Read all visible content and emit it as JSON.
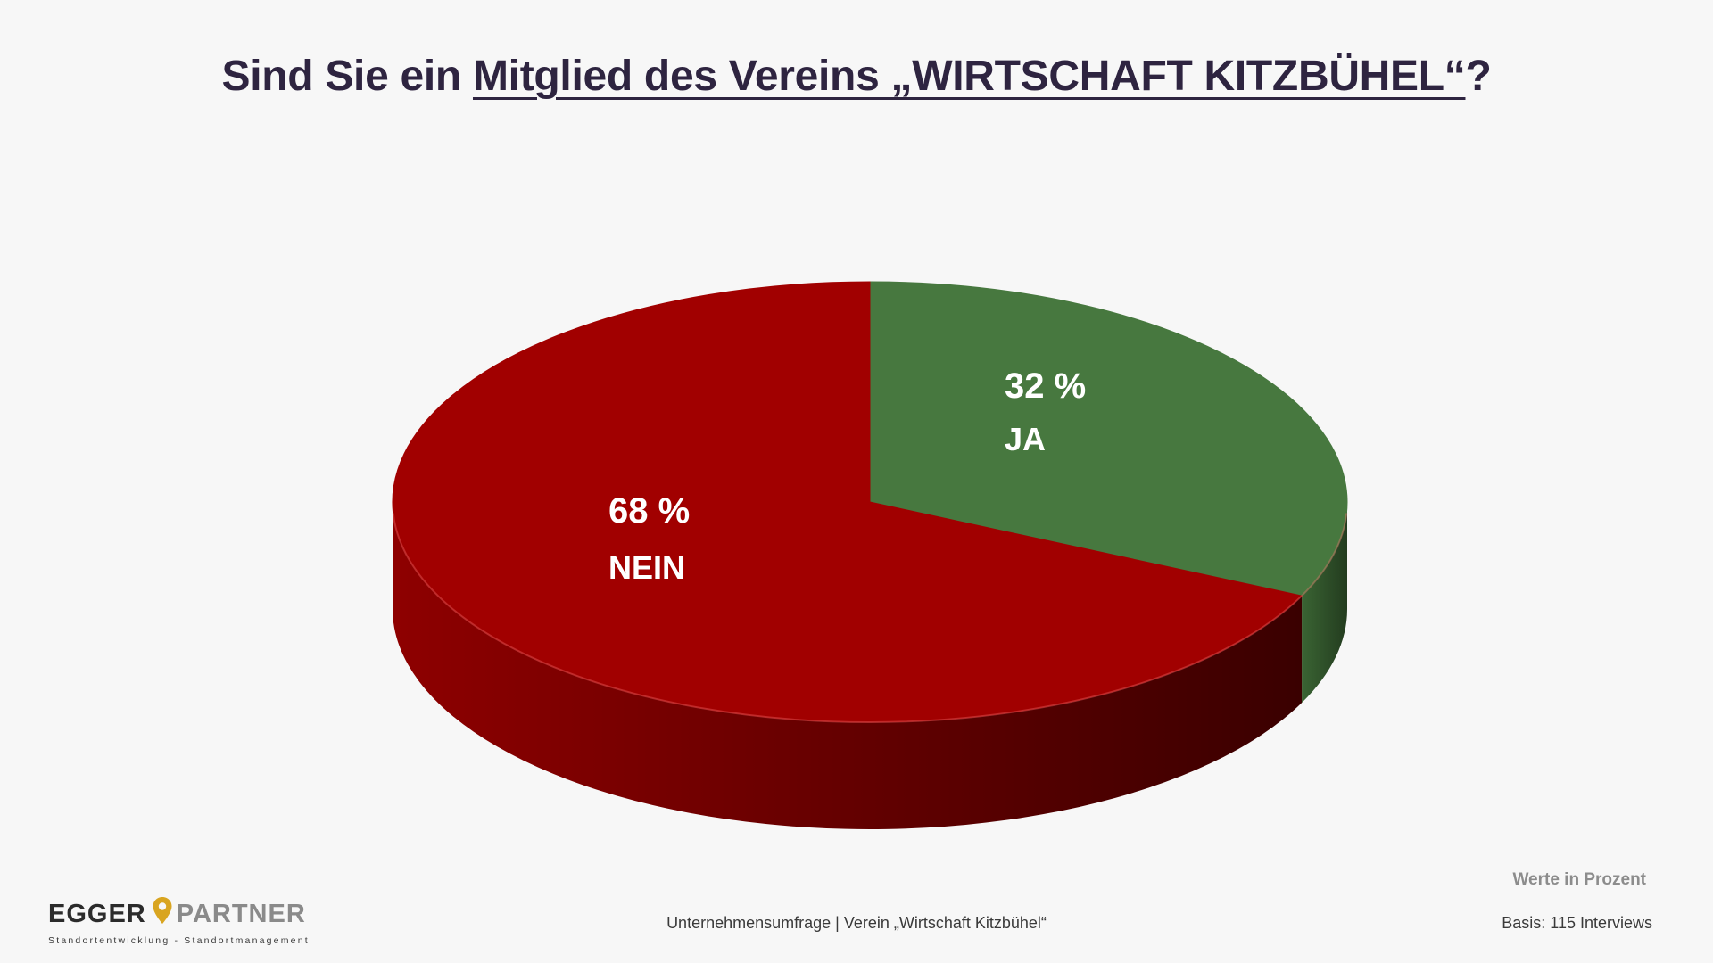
{
  "title": {
    "prefix": "Sind Sie ein ",
    "underlined": "Mitglied des Vereins „WIRTSCHAFT KITZBÜHEL“",
    "suffix": "?"
  },
  "chart_data": {
    "type": "pie",
    "title": "Sind Sie ein Mitglied des Vereins „WIRTSCHAFT KITZBÜHEL“?",
    "unit": "%",
    "slices": [
      {
        "label": "JA",
        "value": 32,
        "value_label": "32 %",
        "color": "#47783f",
        "side_color": "#2c4a27"
      },
      {
        "label": "NEIN",
        "value": 68,
        "value_label": "68 %",
        "color": "#a10000",
        "side_color": "#6e0000"
      }
    ]
  },
  "note_values": "Werte in Prozent",
  "footer_source": "Unternehmensumfrage | Verein „Wirtschaft Kitzbühel“",
  "basis": "Basis: 115 Interviews",
  "logo": {
    "word1": "EGGER",
    "word2": "PARTNER",
    "tagline": "Standortentwicklung - Standortmanagement",
    "pin_color": "#d9a520",
    "icon": "location-pin-icon"
  }
}
